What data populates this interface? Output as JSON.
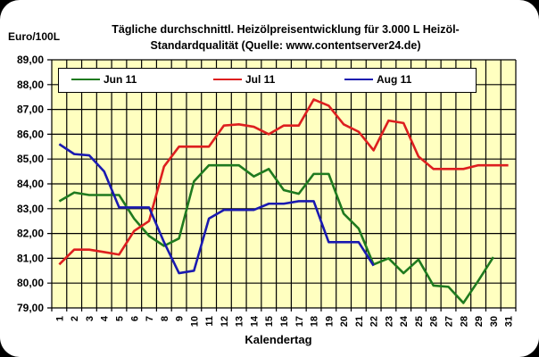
{
  "chart_data": {
    "type": "line",
    "title": "Tägliche durchschnittl. Heizölpreisentwicklung für 3.000 L Heizöl-Standardqualität (Quelle: www.contentserver24.de)",
    "title_lines": [
      "Tägliche durchschnittl. Heizölpreisentwicklung für 3.000 L Heizöl-",
      "Standardqualität (Quelle: www.contentserver24.de)"
    ],
    "xlabel": "Kalendertag",
    "ylabel": "Euro/100L",
    "ylim": [
      79,
      89
    ],
    "yticks": [
      "79,00",
      "80,00",
      "81,00",
      "82,00",
      "83,00",
      "84,00",
      "85,00",
      "86,00",
      "87,00",
      "88,00",
      "89,00"
    ],
    "x": [
      1,
      2,
      3,
      4,
      5,
      6,
      7,
      8,
      9,
      10,
      11,
      12,
      13,
      14,
      15,
      16,
      17,
      18,
      19,
      20,
      21,
      22,
      23,
      24,
      25,
      26,
      27,
      28,
      29,
      30,
      31
    ],
    "grid": true,
    "background": "#ffffc0",
    "legend_position": "top-inside",
    "series": [
      {
        "name": "Jun 11",
        "color": "#1f7a1f",
        "values": [
          83.3,
          83.65,
          83.55,
          83.55,
          83.55,
          82.6,
          81.9,
          81.5,
          81.8,
          84.1,
          84.75,
          84.75,
          84.75,
          84.3,
          84.6,
          83.75,
          83.6,
          84.4,
          84.4,
          82.8,
          82.2,
          80.75,
          81.0,
          80.4,
          80.95,
          79.9,
          79.85,
          79.2,
          80.1,
          81.05
        ]
      },
      {
        "name": "Jul 11",
        "color": "#dd1f1f",
        "values": [
          80.75,
          81.35,
          81.35,
          81.25,
          81.15,
          82.1,
          82.5,
          84.7,
          85.5,
          85.5,
          85.5,
          86.35,
          86.4,
          86.3,
          86.0,
          86.35,
          86.35,
          87.4,
          87.15,
          86.4,
          86.1,
          85.35,
          86.55,
          86.45,
          85.1,
          84.6,
          84.6,
          84.6,
          84.75,
          84.75,
          84.75
        ]
      },
      {
        "name": "Aug 11",
        "color": "#1a1ab0",
        "values": [
          85.6,
          85.2,
          85.15,
          84.5,
          83.05,
          83.05,
          83.05,
          81.65,
          80.4,
          80.5,
          82.6,
          82.95,
          82.95,
          82.95,
          83.2,
          83.2,
          83.3,
          83.3,
          81.65,
          81.65,
          81.65,
          80.7
        ]
      }
    ]
  }
}
